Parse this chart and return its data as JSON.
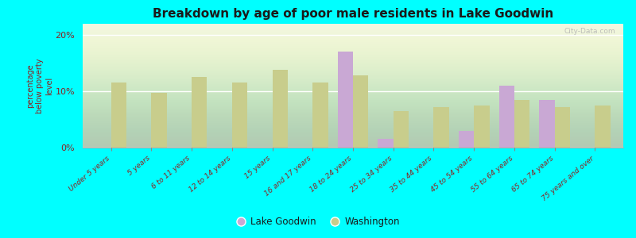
{
  "title": "Breakdown by age of poor male residents in Lake Goodwin",
  "ylabel": "percentage\nbelow poverty\nlevel",
  "categories": [
    "Under 5 years",
    "5 years",
    "6 to 11 years",
    "12 to 14 years",
    "15 years",
    "16 and 17 years",
    "18 to 24 years",
    "25 to 34 years",
    "35 to 44 years",
    "45 to 54 years",
    "55 to 64 years",
    "65 to 74 years",
    "75 years and over"
  ],
  "lake_goodwin": [
    0,
    0,
    0,
    0,
    0,
    0,
    17.0,
    1.5,
    0,
    3.0,
    11.0,
    8.5,
    0
  ],
  "washington": [
    11.5,
    9.8,
    12.5,
    11.5,
    13.8,
    11.5,
    12.8,
    6.5,
    7.2,
    7.5,
    8.5,
    7.2,
    7.5
  ],
  "lake_goodwin_color": "#c9a8d4",
  "washington_color": "#c8cd8c",
  "background_color": "#00ffff",
  "title_color": "#1a1a1a",
  "axis_label_color": "#8b2222",
  "tick_label_color": "#8b2222",
  "ylim": [
    0,
    22
  ],
  "yticks": [
    0,
    10,
    20
  ],
  "ytick_labels": [
    "0%",
    "10%",
    "20%"
  ],
  "bar_width": 0.38,
  "legend_lake": "Lake Goodwin",
  "legend_washington": "Washington",
  "watermark": "City-Data.com"
}
